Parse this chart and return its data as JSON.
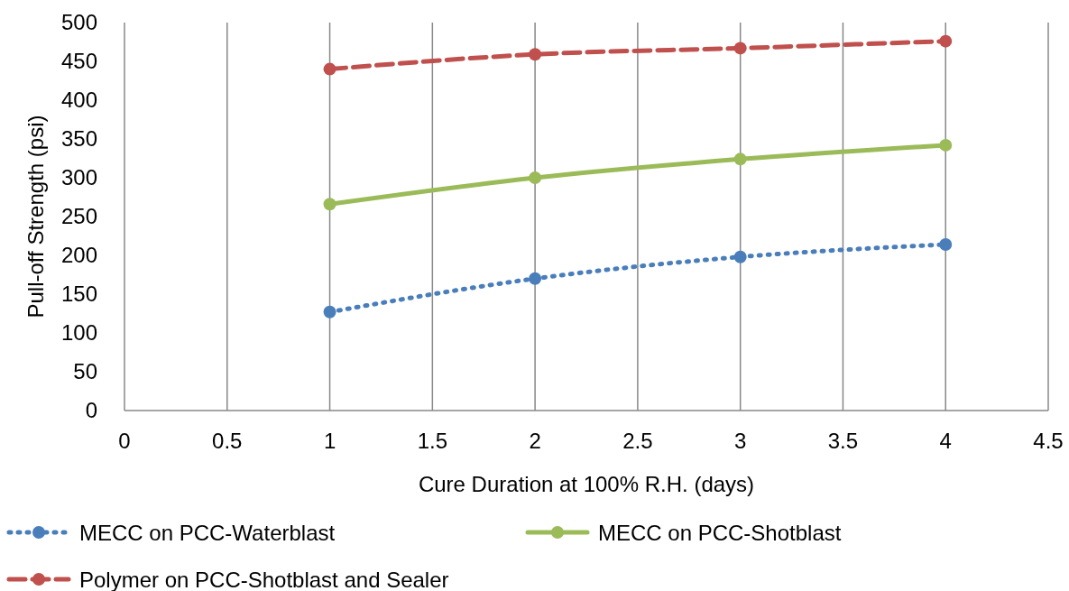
{
  "chart_data": {
    "type": "line",
    "xlabel": "Cure Duration at 100% R.H. (days)",
    "ylabel": "Pull-off Strength (psi)",
    "x": [
      1,
      2,
      3,
      4
    ],
    "series": [
      {
        "name": "MECC on PCC-Waterblast",
        "color": "#4a7ebb",
        "values": [
          127,
          170,
          198,
          214
        ],
        "line_style": "dotted"
      },
      {
        "name": "MECC on PCC-Shotblast",
        "color": "#9bbb59",
        "values": [
          266,
          300,
          324,
          342
        ],
        "line_style": "solid"
      },
      {
        "name": "Polymer on PCC-Shotblast and Sealer",
        "color": "#c0504d",
        "values": [
          440,
          459,
          467,
          476
        ],
        "line_style": "dashed"
      }
    ],
    "xlim": [
      0,
      4.5
    ],
    "xticks": [
      0,
      0.5,
      1,
      1.5,
      2,
      2.5,
      3,
      3.5,
      4,
      4.5
    ],
    "ylim": [
      0,
      500
    ],
    "yticks": [
      0,
      50,
      100,
      150,
      200,
      250,
      300,
      350,
      400,
      450,
      500
    ],
    "grid": "x",
    "legend": "bottom",
    "marker": "circle"
  }
}
